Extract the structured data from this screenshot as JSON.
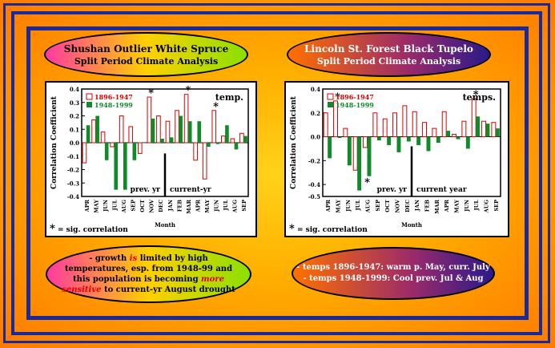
{
  "left": {
    "title": "Shushan Outlier White Spruce",
    "subtitle": "Split Period Climate Analysis",
    "note_pre": "- growth ",
    "note_is": "is",
    "note_mid": " limited by high temperatures, esp. from 1948-99 and this population is becoming ",
    "note_sens": "more sensitive",
    "note_post": " to current-yr August drought"
  },
  "right": {
    "title": "Lincoln St. Forest Black Tupelo",
    "subtitle": "Split Period Climate Analysis",
    "line1": "- temps 1896-1947: warm p. May, curr. July",
    "line2": "- temps 1948-1999: Cool prev. Jul & Aug"
  },
  "colors": {
    "red": "#e00000",
    "green": "#118a2a"
  },
  "chart_data": [
    {
      "type": "bar",
      "categories": [
        "APR",
        "MAY",
        "JUN",
        "JUL",
        "AUG",
        "SEP",
        "OCT",
        "NOV",
        "DEC",
        "JAN",
        "FEB",
        "MAR",
        "APR",
        "MAY",
        "JUN",
        "JUL",
        "AUG",
        "SEP"
      ],
      "series": [
        {
          "name": "1896-1947",
          "values": [
            -0.15,
            0.17,
            0.08,
            -0.03,
            0.2,
            0.12,
            -0.08,
            0.34,
            0.2,
            0.16,
            0.24,
            0.36,
            -0.13,
            -0.27,
            0.24,
            0.05,
            0.03,
            0.07
          ]
        },
        {
          "name": "1948-1999",
          "values": [
            0.13,
            0.2,
            -0.13,
            -0.35,
            -0.35,
            -0.13,
            0.0,
            0.18,
            0.03,
            0.04,
            0.2,
            0.16,
            0.16,
            -0.03,
            -0.01,
            0.13,
            -0.05,
            0.05
          ]
        }
      ],
      "title": "temp.",
      "xlabel": "Month",
      "ylabel": "Correlation Coefficient",
      "ylim": [
        -0.4,
        0.4
      ],
      "yticks": [
        0.4,
        0.3,
        0.2,
        0.1,
        0.0,
        -0.1,
        -0.2,
        -0.3,
        -0.4
      ],
      "ytick_labels": [
        "0.4",
        "0.3",
        "0.2",
        "0.1",
        "0.0",
        "-0.1",
        "-0.2",
        "-0.3",
        "-0.4"
      ],
      "sig_index": [
        7,
        11,
        14
      ],
      "period_labels": [
        "prev. yr",
        "current-yr"
      ],
      "sig_legend": "= sig. correlation"
    },
    {
      "type": "bar",
      "categories": [
        "APR",
        "MAY",
        "JUN",
        "JUL",
        "AUG",
        "SEP",
        "OCT",
        "NOV",
        "DEC",
        "JAN",
        "FEB",
        "MAR",
        "APR",
        "MAY",
        "JUN",
        "JUL",
        "AUG",
        "SEP"
      ],
      "series": [
        {
          "name": "1896-1947",
          "values": [
            0.2,
            0.3,
            0.07,
            -0.28,
            -0.09,
            0.2,
            0.15,
            0.2,
            0.26,
            0.21,
            0.12,
            0.07,
            0.21,
            0.02,
            0.13,
            0.32,
            0.13,
            0.12
          ]
        },
        {
          "name": "1948-1999",
          "values": [
            -0.18,
            -0.01,
            -0.24,
            -0.45,
            -0.33,
            -0.03,
            -0.07,
            -0.13,
            -0.04,
            -0.07,
            -0.12,
            -0.05,
            0.05,
            -0.02,
            -0.1,
            0.17,
            0.11,
            0.07
          ]
        }
      ],
      "title": "temps.",
      "xlabel": "Month",
      "ylabel": "Correlation Coefficient",
      "ylim": [
        -0.5,
        0.4
      ],
      "yticks": [
        0.4,
        0.2,
        0.0,
        -0.2,
        -0.4,
        -0.5
      ],
      "ytick_labels": [
        "0.4",
        "0.2",
        "0.0",
        "-0.2",
        "-0.4",
        "-0.5"
      ],
      "sig_index": [
        1,
        4,
        15
      ],
      "period_labels": [
        "prev. yr",
        "current year"
      ],
      "sig_legend": "= sig. correlation"
    }
  ]
}
